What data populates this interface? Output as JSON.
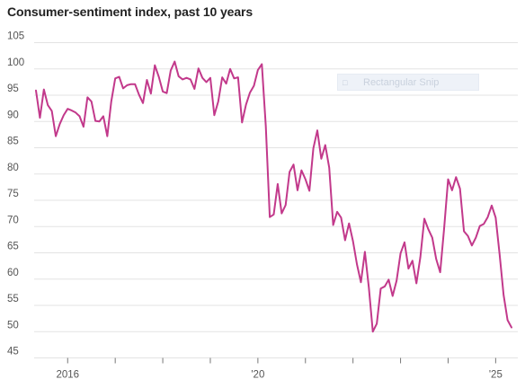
{
  "title": "Consumer-sentiment index, past 10 years",
  "overlay": {
    "label": "Rectangular Snip",
    "icon": "snip-icon"
  },
  "colors": {
    "line": "#c2398b",
    "grid": "#e3e3e3",
    "text": "#555555"
  },
  "chart_data": {
    "type": "line",
    "title": "Consumer-sentiment index, past 10 years",
    "xlabel": "",
    "ylabel": "",
    "ylim": [
      45,
      105
    ],
    "yticks": [
      45,
      50,
      55,
      60,
      65,
      70,
      75,
      80,
      85,
      90,
      95,
      100,
      105
    ],
    "xticks": [
      {
        "x": "2016-01",
        "label": "2016"
      },
      {
        "x": "2017-01",
        "label": ""
      },
      {
        "x": "2018-01",
        "label": ""
      },
      {
        "x": "2019-01",
        "label": ""
      },
      {
        "x": "2020-01",
        "label": "'20"
      },
      {
        "x": "2021-01",
        "label": ""
      },
      {
        "x": "2022-01",
        "label": ""
      },
      {
        "x": "2023-01",
        "label": ""
      },
      {
        "x": "2024-01",
        "label": ""
      },
      {
        "x": "2025-01",
        "label": "'25"
      }
    ],
    "grid": true,
    "series": [
      {
        "x": [
          "2015-05",
          "2015-06",
          "2015-07",
          "2015-08",
          "2015-09",
          "2015-10",
          "2015-11",
          "2015-12",
          "2016-01",
          "2016-02",
          "2016-03",
          "2016-04",
          "2016-05",
          "2016-06",
          "2016-07",
          "2016-08",
          "2016-09",
          "2016-10",
          "2016-11",
          "2016-12",
          "2017-01",
          "2017-02",
          "2017-03",
          "2017-04",
          "2017-05",
          "2017-06",
          "2017-07",
          "2017-08",
          "2017-09",
          "2017-10",
          "2017-11",
          "2017-12",
          "2018-01",
          "2018-02",
          "2018-03",
          "2018-04",
          "2018-05",
          "2018-06",
          "2018-07",
          "2018-08",
          "2018-09",
          "2018-10",
          "2018-11",
          "2018-12",
          "2019-01",
          "2019-02",
          "2019-03",
          "2019-04",
          "2019-05",
          "2019-06",
          "2019-07",
          "2019-08",
          "2019-09",
          "2019-10",
          "2019-11",
          "2019-12",
          "2020-01",
          "2020-02",
          "2020-03",
          "2020-04",
          "2020-05",
          "2020-06",
          "2020-07",
          "2020-08",
          "2020-09",
          "2020-10",
          "2020-11",
          "2020-12",
          "2021-01",
          "2021-02",
          "2021-03",
          "2021-04",
          "2021-05",
          "2021-06",
          "2021-07",
          "2021-08",
          "2021-09",
          "2021-10",
          "2021-11",
          "2021-12",
          "2022-01",
          "2022-02",
          "2022-03",
          "2022-04",
          "2022-05",
          "2022-06",
          "2022-07",
          "2022-08",
          "2022-09",
          "2022-10",
          "2022-11",
          "2022-12",
          "2023-01",
          "2023-02",
          "2023-03",
          "2023-04",
          "2023-05",
          "2023-06",
          "2023-07",
          "2023-08",
          "2023-09",
          "2023-10",
          "2023-11",
          "2023-12",
          "2024-01",
          "2024-02",
          "2024-03",
          "2024-04",
          "2024-05",
          "2024-06",
          "2024-07",
          "2024-08",
          "2024-09",
          "2024-10",
          "2024-11",
          "2024-12",
          "2025-01",
          "2025-02",
          "2025-03",
          "2025-04",
          "2025-05"
        ],
        "y": [
          95.9,
          90.7,
          96.1,
          93.1,
          92.0,
          87.2,
          89.5,
          91.2,
          92.4,
          92.1,
          91.7,
          91.0,
          89.0,
          94.6,
          93.8,
          90.1,
          90.0,
          91.0,
          87.2,
          93.8,
          98.2,
          98.5,
          96.3,
          96.9,
          97.1,
          97.1,
          95.1,
          93.5,
          97.9,
          95.3,
          100.7,
          98.5,
          95.7,
          95.4,
          99.7,
          101.4,
          98.6,
          98.0,
          98.3,
          98.0,
          96.2,
          100.1,
          98.3,
          97.5,
          98.3,
          91.2,
          93.8,
          98.4,
          97.2,
          100.0,
          98.2,
          98.4,
          89.8,
          93.2,
          95.5,
          96.8,
          99.8,
          100.9,
          89.1,
          71.8,
          72.3,
          78.1,
          72.5,
          74.1,
          80.4,
          81.8,
          76.9,
          80.7,
          79.0,
          76.8,
          84.9,
          88.3,
          82.9,
          85.5,
          81.2,
          70.3,
          72.8,
          71.7,
          67.4,
          70.6,
          67.2,
          62.8,
          59.4,
          65.2,
          58.4,
          50.0,
          51.5,
          58.2,
          58.6,
          59.9,
          56.8,
          59.7,
          64.9,
          67.0,
          62.0,
          63.5,
          59.2,
          64.2,
          71.5,
          69.5,
          67.9,
          63.8,
          61.3,
          69.7,
          79.0,
          76.9,
          79.4,
          77.2,
          69.1,
          68.2,
          66.4,
          67.9,
          70.1,
          70.5,
          71.8,
          74.0,
          71.7,
          64.7,
          57.0,
          52.2,
          50.8
        ]
      }
    ]
  }
}
